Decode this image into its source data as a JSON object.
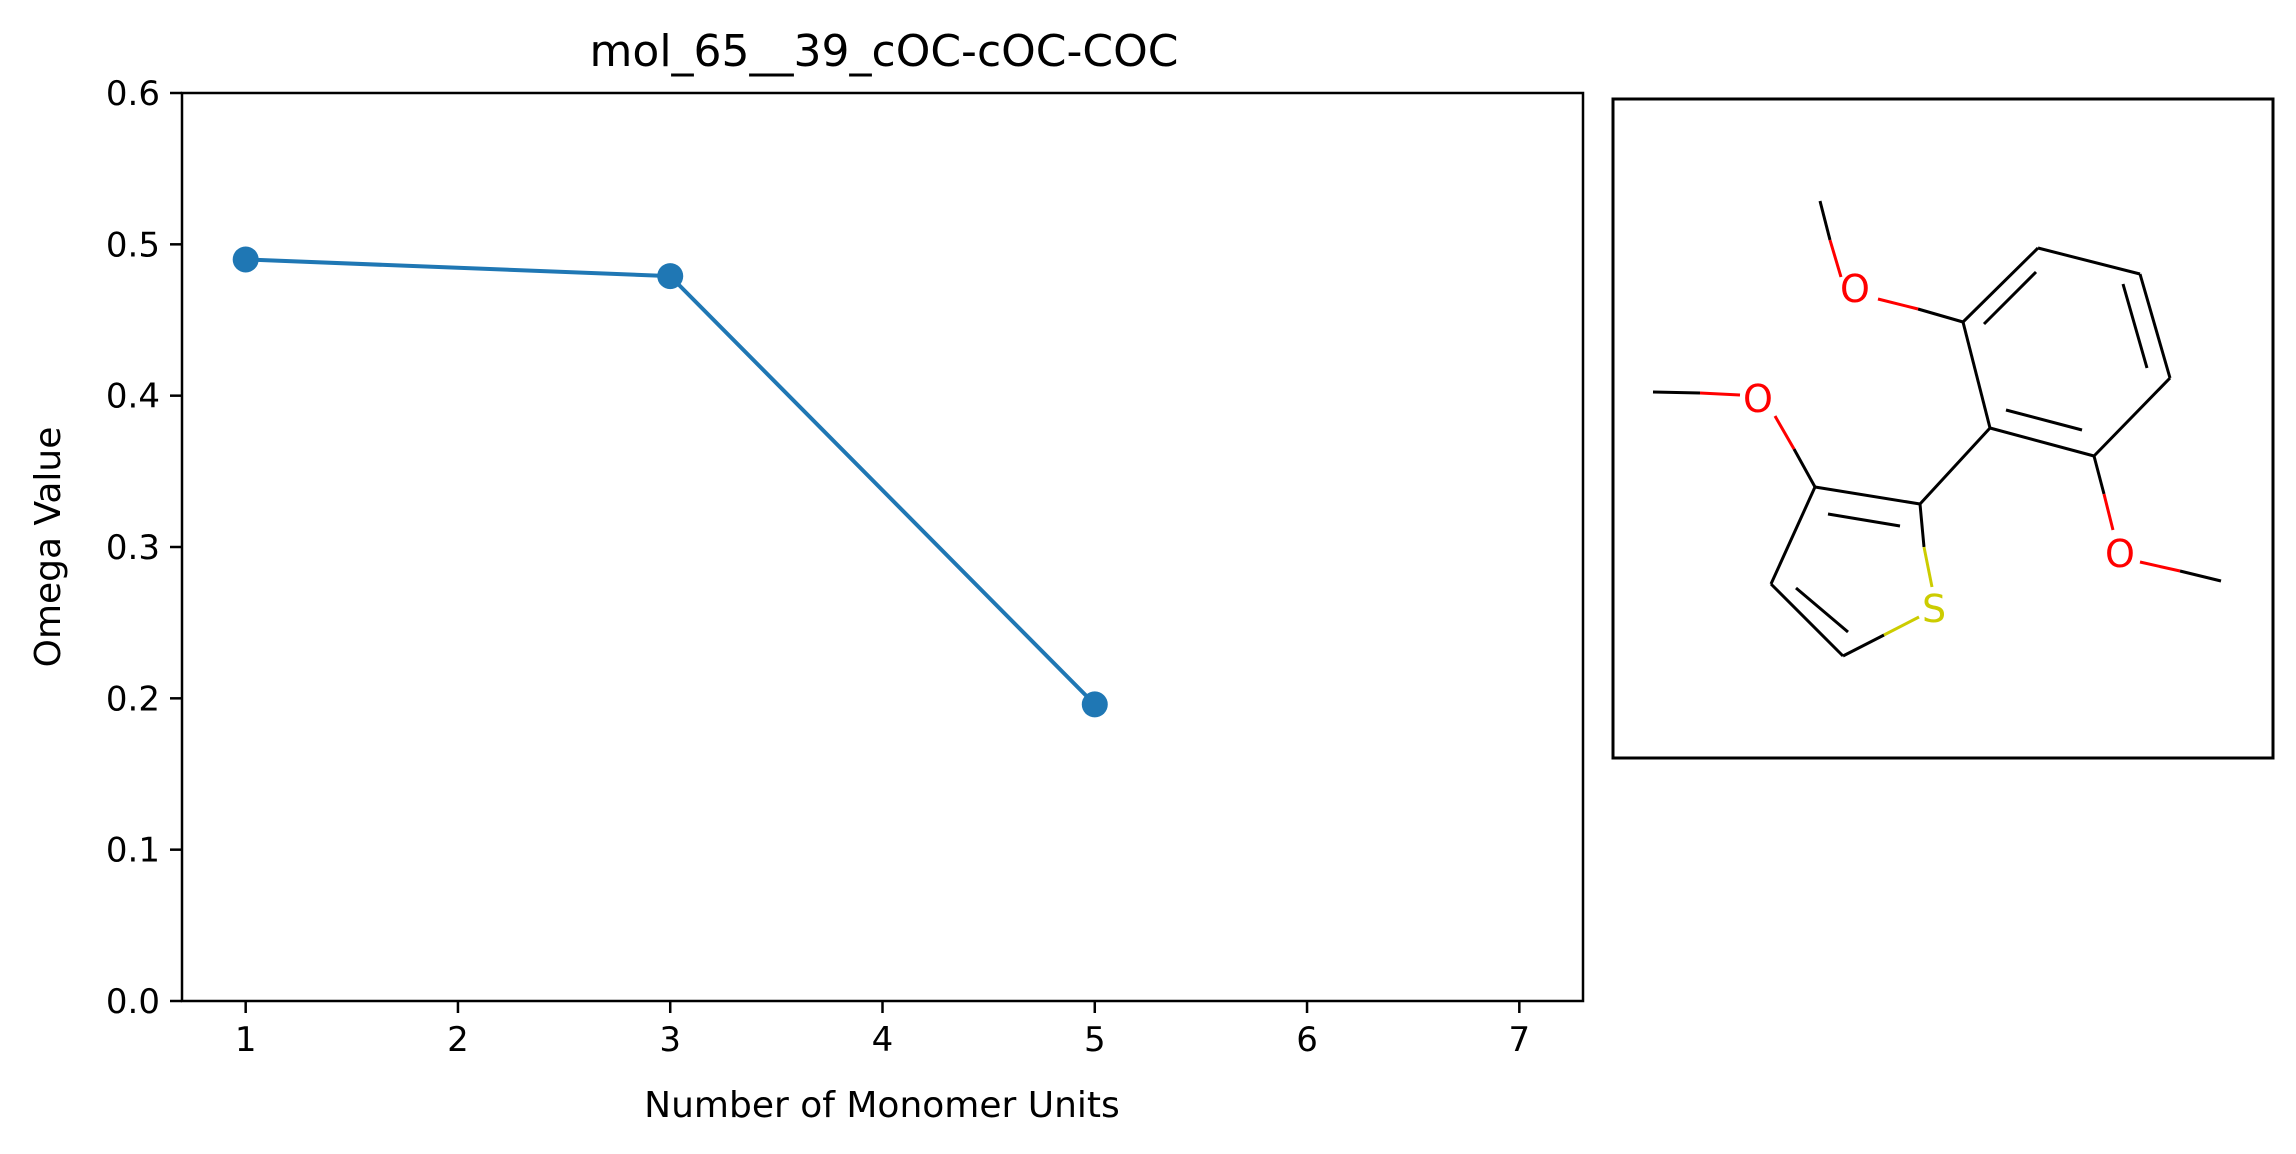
{
  "chart_data": {
    "type": "line",
    "title": "mol_65__39_cOC-cOC-COC",
    "xlabel": "Number of Monomer Units",
    "ylabel": "Omega Value",
    "xlim": [
      0.7,
      7.3
    ],
    "ylim": [
      0.0,
      0.6
    ],
    "x_ticks": [
      "1",
      "2",
      "3",
      "4",
      "5",
      "6",
      "7"
    ],
    "y_ticks": [
      "0.0",
      "0.1",
      "0.2",
      "0.3",
      "0.4",
      "0.5",
      "0.6"
    ],
    "grid": false,
    "series": [
      {
        "x": [
          1,
          3,
          5
        ],
        "y": [
          0.49,
          0.479,
          0.196
        ],
        "color": "#1f77b4",
        "marker": "circle"
      }
    ]
  },
  "molecule": {
    "atom_labels": [
      "O",
      "O",
      "O",
      "S"
    ],
    "colors": {
      "bond": "#000000",
      "oxygen": "#ff0000",
      "sulfur": "#cccc00"
    }
  }
}
